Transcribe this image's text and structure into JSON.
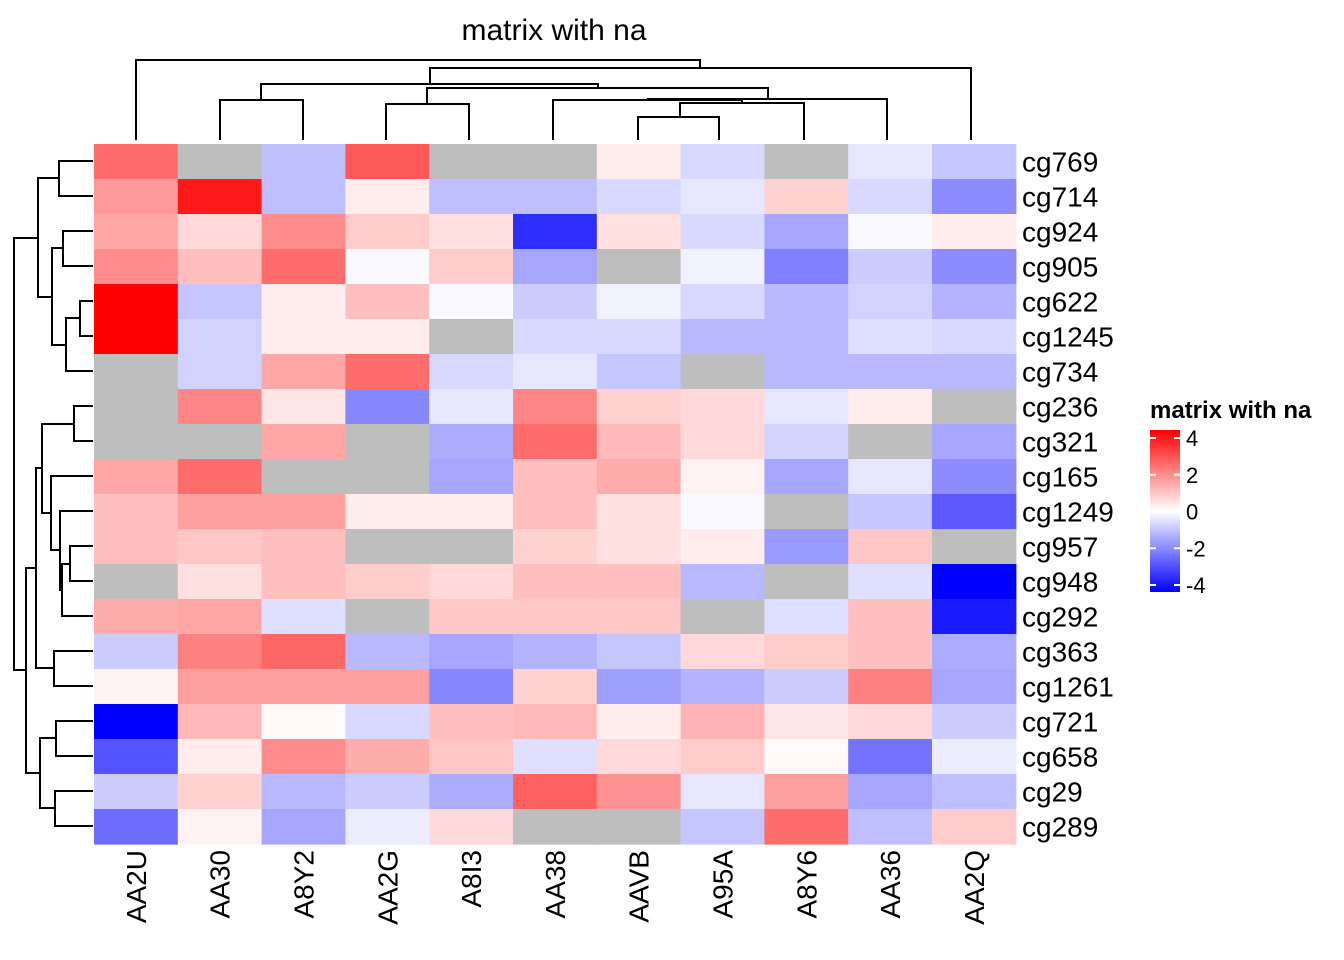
{
  "chart_data": {
    "type": "heatmap",
    "title": "matrix with na",
    "columns": [
      "AA2U",
      "AA30",
      "A8Y2",
      "AA2G",
      "A8I3",
      "AA38",
      "AAVB",
      "A95A",
      "A8Y6",
      "AA36",
      "AA2Q"
    ],
    "rows": [
      "cg769",
      "cg714",
      "cg924",
      "cg905",
      "cg622",
      "cg1245",
      "cg734",
      "cg236",
      "cg321",
      "cg165",
      "cg1249",
      "cg957",
      "cg948",
      "cg292",
      "cg363",
      "cg1261",
      "cg721",
      "cg658",
      "cg29",
      "cg289"
    ],
    "values": [
      [
        2.3,
        null,
        -1.0,
        2.6,
        null,
        null,
        0.3,
        -0.6,
        null,
        -0.4,
        -0.9
      ],
      [
        1.6,
        3.6,
        -1.0,
        0.3,
        -1.0,
        -1.0,
        -0.6,
        -0.4,
        0.7,
        -0.6,
        -1.8
      ],
      [
        1.4,
        0.6,
        1.8,
        0.8,
        0.5,
        -3.3,
        0.5,
        -0.6,
        -1.4,
        -0.1,
        0.3
      ],
      [
        1.8,
        1.0,
        2.3,
        -0.1,
        0.8,
        -1.4,
        null,
        -0.2,
        -2.0,
        -0.8,
        -1.8
      ],
      [
        4.0,
        -0.9,
        0.3,
        1.0,
        -0.1,
        -0.8,
        -0.2,
        -0.6,
        -1.1,
        -0.7,
        -1.2
      ],
      [
        4.0,
        -0.7,
        0.3,
        0.3,
        null,
        -0.6,
        -0.6,
        -1.1,
        -1.1,
        -0.5,
        -0.6
      ],
      [
        null,
        -0.7,
        1.4,
        2.3,
        -0.6,
        -0.4,
        -0.9,
        null,
        -1.1,
        -1.1,
        -1.1
      ],
      [
        null,
        1.9,
        0.4,
        -1.9,
        -0.4,
        1.9,
        0.7,
        0.6,
        -0.4,
        0.3,
        null
      ],
      [
        null,
        null,
        1.4,
        null,
        -1.3,
        2.3,
        1.1,
        0.6,
        -0.7,
        null,
        -1.4
      ],
      [
        1.4,
        2.3,
        null,
        null,
        -1.4,
        1.0,
        1.3,
        0.2,
        -1.4,
        -0.4,
        -1.8
      ],
      [
        1.0,
        1.5,
        1.5,
        0.3,
        0.3,
        1.0,
        0.5,
        -0.1,
        null,
        -0.9,
        -2.6
      ],
      [
        1.0,
        0.9,
        1.0,
        null,
        null,
        0.7,
        0.5,
        0.3,
        -1.6,
        0.9,
        null
      ],
      [
        null,
        0.5,
        1.0,
        0.8,
        0.6,
        1.0,
        1.0,
        -1.1,
        null,
        -0.5,
        -4.0
      ],
      [
        1.3,
        1.4,
        -0.5,
        null,
        0.9,
        0.9,
        0.9,
        null,
        -0.5,
        1.0,
        -3.6
      ],
      [
        -0.8,
        2.0,
        2.4,
        -1.1,
        -1.4,
        -1.2,
        -0.9,
        0.6,
        0.8,
        1.0,
        -1.3
      ],
      [
        0.2,
        1.5,
        1.5,
        1.5,
        -1.9,
        0.7,
        -1.5,
        -1.2,
        -0.8,
        2.0,
        -1.4
      ],
      [
        -4.0,
        1.1,
        0.1,
        -0.6,
        1.0,
        1.1,
        0.3,
        1.2,
        0.4,
        0.6,
        -0.8
      ],
      [
        -2.7,
        0.3,
        1.8,
        1.3,
        0.9,
        -0.5,
        0.6,
        0.8,
        0.1,
        -2.2,
        -0.3
      ],
      [
        -0.8,
        0.7,
        -1.1,
        -0.8,
        -1.3,
        2.5,
        1.7,
        -0.4,
        1.5,
        -1.4,
        -1.0
      ],
      [
        -2.3,
        0.2,
        -1.4,
        -0.3,
        0.6,
        null,
        null,
        -0.9,
        2.3,
        -1.0,
        0.8
      ]
    ],
    "na_color": "#BEBEBE",
    "color_scale": {
      "min": -4,
      "mid": 0,
      "max": 4,
      "colors": [
        "#0000FF",
        "#FFFFFF",
        "#FF0000"
      ]
    },
    "legend": {
      "title": "matrix with na",
      "ticks": [
        "4",
        "2",
        "0",
        "-2",
        "-4"
      ],
      "position": "right"
    }
  }
}
